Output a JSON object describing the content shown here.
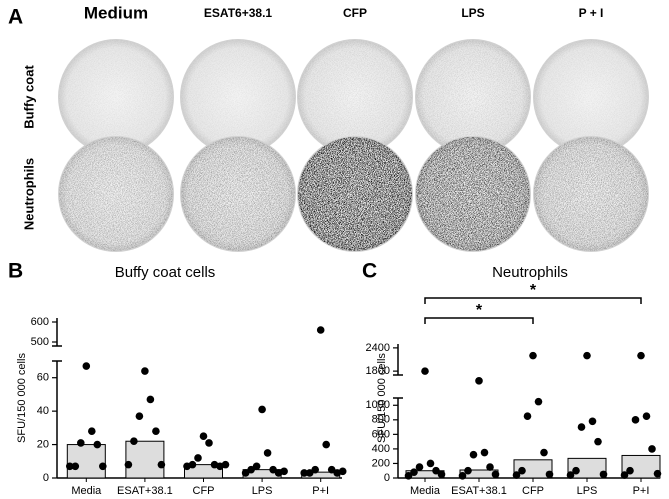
{
  "panels": {
    "a": "A",
    "b": "B",
    "c": "C"
  },
  "wells": {
    "columns": [
      "Medium",
      "ESAT6+38.1",
      "CFP",
      "LPS",
      "P + I"
    ],
    "rows": [
      "Buffy coat",
      "Neutrophils"
    ]
  },
  "chart_data": [
    {
      "type": "bar",
      "title": "Buffy coat cells",
      "ylabel": "SFU/150 000 cells",
      "categories": [
        "Media",
        "ESAT+38.1",
        "CFP",
        "LPS",
        "P+I"
      ],
      "values": [
        20,
        22,
        8,
        5,
        3.5
      ],
      "points": [
        [
          67,
          28,
          21,
          20,
          7,
          7,
          7
        ],
        [
          64,
          47,
          37,
          28,
          22,
          8,
          8
        ],
        [
          25,
          21,
          12,
          8,
          8,
          7,
          7,
          8
        ],
        [
          41,
          15,
          7,
          5,
          5,
          3,
          3,
          4
        ],
        [
          560,
          20,
          5,
          5,
          3,
          3,
          3,
          4
        ]
      ],
      "color": "#dddddd",
      "ylim": [
        0,
        70
      ],
      "yticks": [
        0,
        20,
        40,
        60
      ],
      "ylim_upper": [
        480,
        620
      ],
      "yticks_upper": [
        500,
        600
      ]
    },
    {
      "type": "bar",
      "title": "Neutrophils",
      "ylabel": "SFU/150 000 cells",
      "categories": [
        "Media",
        "ESAT+38.1",
        "CFP",
        "LPS",
        "P+I"
      ],
      "values": [
        100,
        110,
        250,
        270,
        310
      ],
      "points": [
        [
          1800,
          200,
          150,
          100,
          80,
          50,
          30
        ],
        [
          1550,
          350,
          320,
          150,
          100,
          50,
          30
        ],
        [
          2200,
          1050,
          850,
          350,
          100,
          50,
          40
        ],
        [
          2200,
          780,
          700,
          500,
          100,
          50,
          40
        ],
        [
          2200,
          850,
          800,
          400,
          100,
          60,
          40
        ]
      ],
      "color": "#dddddd",
      "ylim": [
        0,
        1100
      ],
      "yticks": [
        0,
        200,
        400,
        600,
        800,
        1000
      ],
      "ylim_upper": [
        1700,
        2500
      ],
      "yticks_upper": [
        1800,
        2400
      ],
      "significance": [
        {
          "from": 0,
          "to": 2,
          "label": "*"
        },
        {
          "from": 0,
          "to": 4,
          "label": "*"
        }
      ]
    }
  ]
}
